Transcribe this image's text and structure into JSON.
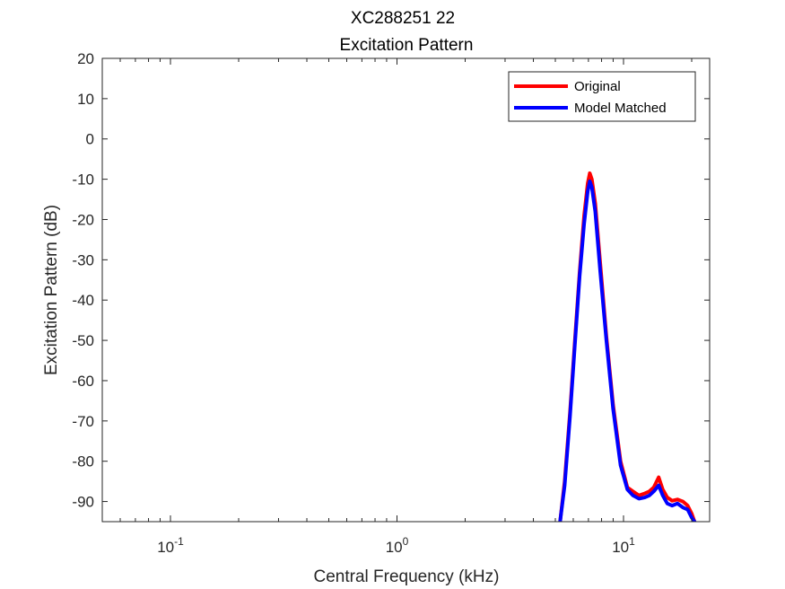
{
  "chart_data": {
    "type": "line",
    "title": "XC288251 22",
    "subtitle": "Excitation Pattern",
    "xlabel": "Central Frequency (kHz)",
    "ylabel": "Excitation Pattern (dB)",
    "xscale": "log",
    "xlim": [
      0.05,
      24
    ],
    "ylim": [
      -95,
      20
    ],
    "xticks": [
      {
        "value": 0.1,
        "base": "10",
        "exp": "-1"
      },
      {
        "value": 1,
        "base": "10",
        "exp": "0"
      },
      {
        "value": 10,
        "base": "10",
        "exp": "1"
      }
    ],
    "yticks": [
      {
        "value": 20,
        "label": "20"
      },
      {
        "value": 10,
        "label": "10"
      },
      {
        "value": 0,
        "label": "0"
      },
      {
        "value": -10,
        "label": "-10"
      },
      {
        "value": -20,
        "label": "-20"
      },
      {
        "value": -30,
        "label": "-30"
      },
      {
        "value": -40,
        "label": "-40"
      },
      {
        "value": -50,
        "label": "-50"
      },
      {
        "value": -60,
        "label": "-60"
      },
      {
        "value": -70,
        "label": "-70"
      },
      {
        "value": -80,
        "label": "-80"
      },
      {
        "value": -90,
        "label": "-90"
      }
    ],
    "grid": false,
    "legend_position": "top-right",
    "series": [
      {
        "name": "Original",
        "color": "#ff0000",
        "x": [
          5.25,
          5.5,
          5.8,
          6.1,
          6.4,
          6.7,
          6.95,
          7.1,
          7.25,
          7.5,
          7.9,
          8.4,
          9.0,
          9.7,
          10.4,
          11.0,
          11.7,
          12.4,
          13.0,
          13.6,
          14.3,
          14.9,
          15.6,
          16.4,
          17.3,
          18.3,
          19.2,
          20.0,
          20.6
        ],
        "y": [
          -95,
          -85,
          -68,
          -50,
          -33,
          -19,
          -11,
          -8.5,
          -10,
          -16,
          -31,
          -49,
          -66,
          -80,
          -86.5,
          -87.5,
          -88.5,
          -88,
          -87.5,
          -86.5,
          -84,
          -87,
          -89,
          -89.8,
          -89.5,
          -90,
          -91,
          -93,
          -95
        ]
      },
      {
        "name": "Model Matched",
        "color": "#0000ff",
        "x": [
          5.25,
          5.5,
          5.8,
          6.1,
          6.4,
          6.7,
          6.95,
          7.1,
          7.25,
          7.5,
          7.9,
          8.4,
          9.0,
          9.7,
          10.4,
          11.0,
          11.7,
          12.4,
          13.0,
          13.6,
          14.3,
          14.9,
          15.6,
          16.4,
          17.3,
          18.3,
          19.2,
          20.0,
          20.6
        ],
        "y": [
          -95,
          -86,
          -69,
          -51,
          -34,
          -21,
          -13,
          -10.5,
          -12,
          -18,
          -33,
          -50,
          -67,
          -81,
          -87,
          -88.5,
          -89.3,
          -89,
          -88.5,
          -87.5,
          -86,
          -88.5,
          -90.5,
          -91,
          -90.5,
          -91.5,
          -92,
          -94,
          -95
        ]
      }
    ]
  }
}
